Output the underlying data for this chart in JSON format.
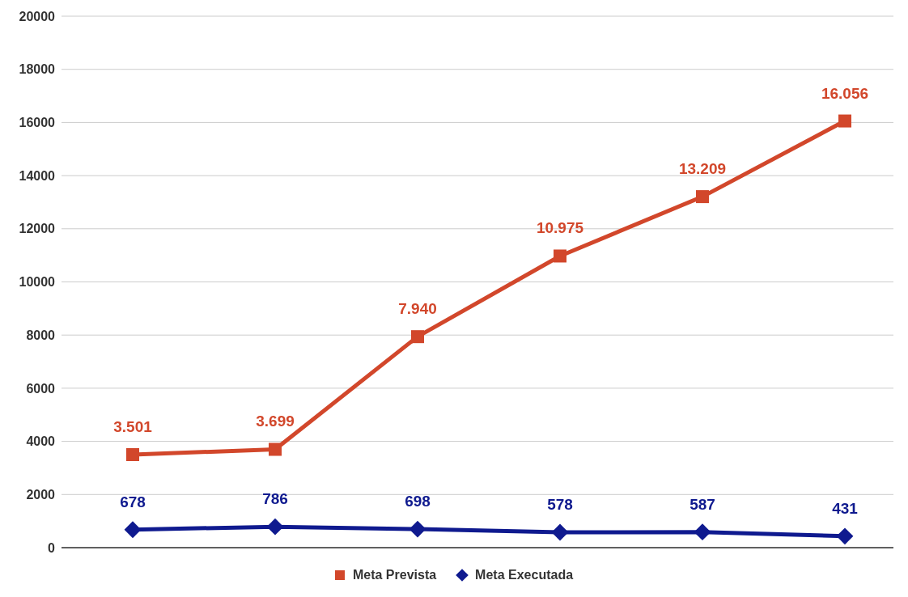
{
  "chart_data": {
    "type": "line",
    "categories": [
      null,
      null,
      null,
      null,
      null,
      null
    ],
    "series": [
      {
        "name": "Meta Prevista",
        "color": "#d2472b",
        "marker": "square",
        "values": [
          3501,
          3699,
          7940,
          10975,
          13209,
          16056
        ],
        "value_labels": [
          "3.501",
          "3.699",
          "7.940",
          "10.975",
          "13.209",
          "16.056"
        ]
      },
      {
        "name": "Meta Executada",
        "color": "#0f1a8f",
        "marker": "diamond",
        "values": [
          678,
          786,
          698,
          578,
          587,
          431
        ],
        "value_labels": [
          "678",
          "786",
          "698",
          "578",
          "587",
          "431"
        ]
      }
    ],
    "ylim": [
      0,
      20000
    ],
    "yticks": [
      0,
      2000,
      4000,
      6000,
      8000,
      10000,
      12000,
      14000,
      16000,
      18000,
      20000
    ],
    "grid": "y",
    "legend": "bottom",
    "tick_labels": "y"
  }
}
